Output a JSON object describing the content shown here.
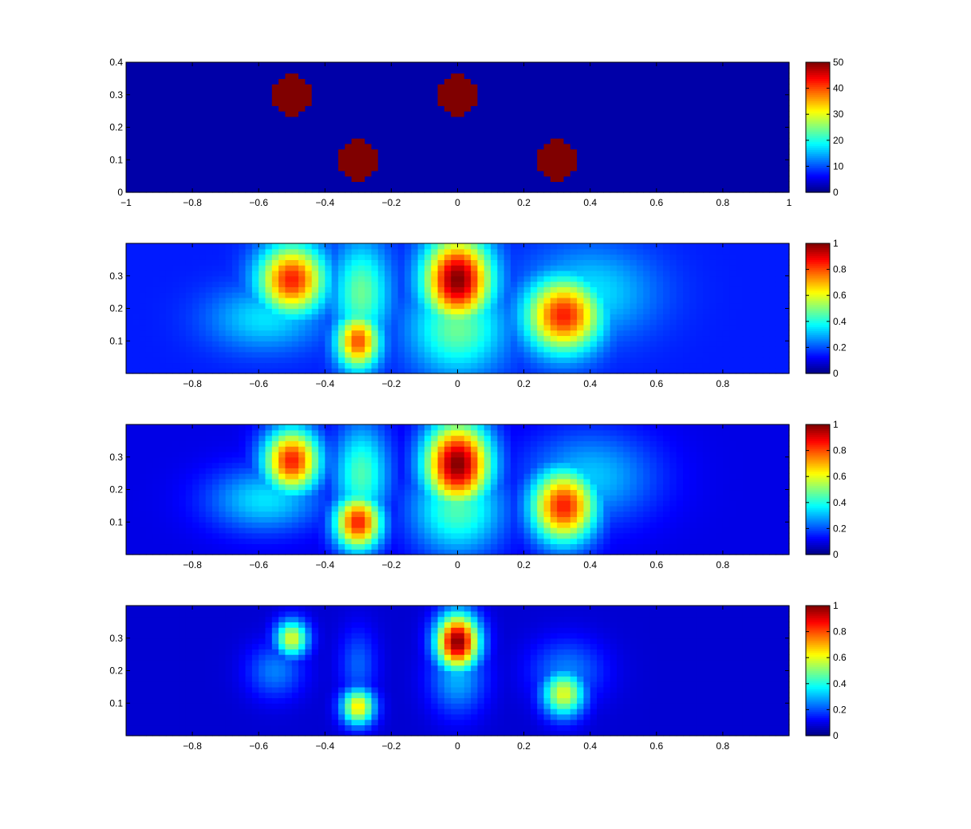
{
  "chart_data": [
    {
      "type": "heatmap",
      "title": "",
      "xlabel": "",
      "ylabel": "",
      "xlim": [
        -1,
        1
      ],
      "ylim": [
        0,
        0.4
      ],
      "x_ticks": [
        -1,
        -0.8,
        -0.6,
        -0.4,
        -0.2,
        0,
        0.2,
        0.4,
        0.6,
        0.8,
        1
      ],
      "x_tick_labels": [
        "−1",
        "−0.8",
        "−0.6",
        "−0.4",
        "−0.2",
        "0",
        "0.2",
        "0.4",
        "0.6",
        "0.8",
        "1"
      ],
      "y_ticks": [
        0,
        0.1,
        0.2,
        0.3,
        0.4
      ],
      "y_tick_labels": [
        "0",
        "0.1",
        "0.2",
        "0.3",
        "0.4"
      ],
      "colorbar": {
        "min": 0,
        "max": 50,
        "ticks": [
          0,
          10,
          20,
          30,
          40,
          50
        ],
        "tick_labels": [
          "0",
          "10",
          "20",
          "30",
          "40",
          "50"
        ]
      },
      "colormap": "jet",
      "background_value": 2,
      "blobs": [
        {
          "x": -0.5,
          "y": 0.3,
          "r": 0.062,
          "value": 50
        },
        {
          "x": -0.3,
          "y": 0.1,
          "r": 0.062,
          "value": 50
        },
        {
          "x": 0.0,
          "y": 0.3,
          "r": 0.062,
          "value": 50
        },
        {
          "x": 0.3,
          "y": 0.1,
          "r": 0.062,
          "value": 50
        }
      ]
    },
    {
      "type": "heatmap",
      "title": "",
      "xlabel": "",
      "ylabel": "",
      "xlim": [
        -1,
        1
      ],
      "ylim": [
        0,
        0.4
      ],
      "x_ticks": [
        -0.8,
        -0.6,
        -0.4,
        -0.2,
        0,
        0.2,
        0.4,
        0.6,
        0.8
      ],
      "x_tick_labels": [
        "−0.8",
        "−0.6",
        "−0.4",
        "−0.2",
        "0",
        "0.2",
        "0.4",
        "0.6",
        "0.8"
      ],
      "y_ticks": [
        0.1,
        0.2,
        0.3
      ],
      "y_tick_labels": [
        "0.1",
        "0.2",
        "0.3"
      ],
      "colorbar": {
        "min": 0,
        "max": 1,
        "ticks": [
          0,
          0.2,
          0.4,
          0.6,
          0.8,
          1
        ],
        "tick_labels": [
          "0",
          "0.2",
          "0.4",
          "0.6",
          "0.8",
          "1"
        ]
      },
      "colormap": "jet",
      "background_value": 0.15,
      "blobs": [
        {
          "x": -0.5,
          "y": 0.29,
          "sx": 0.07,
          "sy": 0.075,
          "value": 0.85
        },
        {
          "x": -0.58,
          "y": 0.17,
          "sx": 0.12,
          "sy": 0.07,
          "value": 0.35
        },
        {
          "x": -0.3,
          "y": 0.1,
          "sx": 0.045,
          "sy": 0.06,
          "value": 0.8
        },
        {
          "x": -0.29,
          "y": 0.25,
          "sx": 0.06,
          "sy": 0.11,
          "value": 0.48
        },
        {
          "x": 0.0,
          "y": 0.29,
          "sx": 0.07,
          "sy": 0.09,
          "value": 1.0
        },
        {
          "x": 0.0,
          "y": 0.14,
          "sx": 0.1,
          "sy": 0.1,
          "value": 0.48
        },
        {
          "x": 0.32,
          "y": 0.18,
          "sx": 0.08,
          "sy": 0.08,
          "value": 0.85
        },
        {
          "x": 0.4,
          "y": 0.25,
          "sx": 0.14,
          "sy": 0.1,
          "value": 0.35
        }
      ]
    },
    {
      "type": "heatmap",
      "title": "",
      "xlabel": "",
      "ylabel": "",
      "xlim": [
        -1,
        1
      ],
      "ylim": [
        0,
        0.4
      ],
      "x_ticks": [
        -0.8,
        -0.6,
        -0.4,
        -0.2,
        0,
        0.2,
        0.4,
        0.6,
        0.8
      ],
      "x_tick_labels": [
        "−0.8",
        "−0.6",
        "−0.4",
        "−0.2",
        "0",
        "0.2",
        "0.4",
        "0.6",
        "0.8"
      ],
      "y_ticks": [
        0.1,
        0.2,
        0.3
      ],
      "y_tick_labels": [
        "0.1",
        "0.2",
        "0.3"
      ],
      "colorbar": {
        "min": 0,
        "max": 1,
        "ticks": [
          0,
          0.2,
          0.4,
          0.6,
          0.8,
          1
        ],
        "tick_labels": [
          "0",
          "0.2",
          "0.4",
          "0.6",
          "0.8",
          "1"
        ]
      },
      "colormap": "jet",
      "background_value": 0.1,
      "blobs": [
        {
          "x": -0.5,
          "y": 0.29,
          "sx": 0.06,
          "sy": 0.07,
          "value": 0.85
        },
        {
          "x": -0.58,
          "y": 0.17,
          "sx": 0.12,
          "sy": 0.07,
          "value": 0.35
        },
        {
          "x": -0.3,
          "y": 0.1,
          "sx": 0.05,
          "sy": 0.06,
          "value": 0.85
        },
        {
          "x": -0.29,
          "y": 0.25,
          "sx": 0.06,
          "sy": 0.11,
          "value": 0.45
        },
        {
          "x": 0.0,
          "y": 0.28,
          "sx": 0.07,
          "sy": 0.09,
          "value": 1.0
        },
        {
          "x": 0.0,
          "y": 0.14,
          "sx": 0.1,
          "sy": 0.1,
          "value": 0.45
        },
        {
          "x": 0.32,
          "y": 0.15,
          "sx": 0.07,
          "sy": 0.08,
          "value": 0.85
        },
        {
          "x": 0.4,
          "y": 0.24,
          "sx": 0.14,
          "sy": 0.1,
          "value": 0.32
        }
      ]
    },
    {
      "type": "heatmap",
      "title": "",
      "xlabel": "",
      "ylabel": "",
      "xlim": [
        -1,
        1
      ],
      "ylim": [
        0,
        0.4
      ],
      "x_ticks": [
        -0.8,
        -0.6,
        -0.4,
        -0.2,
        0,
        0.2,
        0.4,
        0.6,
        0.8
      ],
      "x_tick_labels": [
        "−0.8",
        "−0.6",
        "−0.4",
        "−0.2",
        "0",
        "0.2",
        "0.4",
        "0.6",
        "0.8"
      ],
      "y_ticks": [
        0.1,
        0.2,
        0.3
      ],
      "y_tick_labels": [
        "0.1",
        "0.2",
        "0.3"
      ],
      "colorbar": {
        "min": 0,
        "max": 1,
        "ticks": [
          0,
          0.2,
          0.4,
          0.6,
          0.8,
          1
        ],
        "tick_labels": [
          "0",
          "0.2",
          "0.4",
          "0.6",
          "0.8",
          "1"
        ]
      },
      "colormap": "jet",
      "background_value": 0.08,
      "blobs": [
        {
          "x": -0.5,
          "y": 0.3,
          "sx": 0.035,
          "sy": 0.04,
          "value": 0.6
        },
        {
          "x": -0.55,
          "y": 0.2,
          "sx": 0.06,
          "sy": 0.06,
          "value": 0.25
        },
        {
          "x": -0.3,
          "y": 0.09,
          "sx": 0.035,
          "sy": 0.04,
          "value": 0.65
        },
        {
          "x": -0.3,
          "y": 0.22,
          "sx": 0.04,
          "sy": 0.08,
          "value": 0.22
        },
        {
          "x": 0.0,
          "y": 0.29,
          "sx": 0.045,
          "sy": 0.06,
          "value": 1.0
        },
        {
          "x": 0.0,
          "y": 0.18,
          "sx": 0.06,
          "sy": 0.08,
          "value": 0.3
        },
        {
          "x": 0.32,
          "y": 0.13,
          "sx": 0.045,
          "sy": 0.05,
          "value": 0.6
        },
        {
          "x": 0.33,
          "y": 0.2,
          "sx": 0.08,
          "sy": 0.07,
          "value": 0.25
        }
      ]
    }
  ]
}
